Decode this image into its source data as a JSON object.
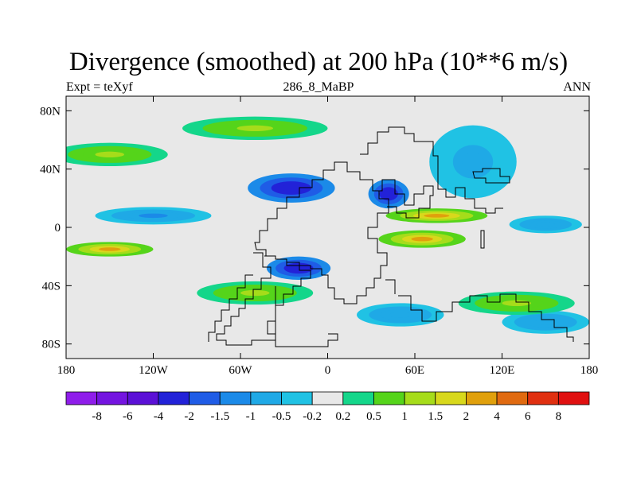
{
  "title": "Divergence (smoothed) at 200 hPa (10**6 m/s)",
  "subtitle_left": "Expt = teXyf",
  "subtitle_center": "286_8_MaBP",
  "subtitle_right": "ANN",
  "chart_data": {
    "type": "heatmap",
    "xlim": [
      -180,
      180
    ],
    "ylim": [
      -90,
      90
    ],
    "x_ticks": [
      {
        "value": -180,
        "label": "180"
      },
      {
        "value": -120,
        "label": "120W"
      },
      {
        "value": -60,
        "label": "60W"
      },
      {
        "value": 0,
        "label": "0"
      },
      {
        "value": 60,
        "label": "60E"
      },
      {
        "value": 120,
        "label": "120E"
      },
      {
        "value": 180,
        "label": "180"
      }
    ],
    "y_ticks": [
      {
        "value": 80,
        "label": "80N"
      },
      {
        "value": 40,
        "label": "40N"
      },
      {
        "value": 0,
        "label": "0"
      },
      {
        "value": -40,
        "label": "40S"
      },
      {
        "value": -80,
        "label": "80S"
      }
    ],
    "colorbar": {
      "labels": [
        "-8",
        "-6",
        "-4",
        "-2",
        "-1.5",
        "-1",
        "-0.5",
        "-0.2",
        "0.2",
        "0.5",
        "1",
        "1.5",
        "2",
        "4",
        "6",
        "8"
      ],
      "colors": [
        "#8f1dea",
        "#7414e0",
        "#5b10d6",
        "#2222d8",
        "#1f5ce6",
        "#1b8ae8",
        "#1fa9e6",
        "#20c2e4",
        "#e8e8e8",
        "#14d68a",
        "#55d41a",
        "#a6dc1a",
        "#d8d81c",
        "#e0a00c",
        "#e06a10",
        "#e03010",
        "#e01010"
      ]
    },
    "fields": [
      {
        "value": -3.0,
        "lon": -25,
        "lat": 27,
        "lon_radius": 30,
        "lat_radius": 10
      },
      {
        "value": -2.5,
        "lon": 42,
        "lat": 23,
        "lon_radius": 14,
        "lat_radius": 10
      },
      {
        "value": -1.2,
        "lon": -120,
        "lat": 8,
        "lon_radius": 40,
        "lat_radius": 6
      },
      {
        "value": -0.8,
        "lon": 100,
        "lat": 45,
        "lon_radius": 30,
        "lat_radius": 25
      },
      {
        "value": -2.5,
        "lon": -20,
        "lat": -28,
        "lon_radius": 22,
        "lat_radius": 8
      },
      {
        "value": -1.0,
        "lon": 50,
        "lat": -60,
        "lon_radius": 30,
        "lat_radius": 8
      },
      {
        "value": -1.0,
        "lon": 150,
        "lat": -65,
        "lon_radius": 30,
        "lat_radius": 8
      },
      {
        "value": -1.0,
        "lon": 150,
        "lat": 2,
        "lon_radius": 25,
        "lat_radius": 6
      },
      {
        "value": 2.0,
        "lon": 75,
        "lat": 8,
        "lon_radius": 35,
        "lat_radius": 5
      },
      {
        "value": 2.2,
        "lon": 65,
        "lat": -8,
        "lon_radius": 30,
        "lat_radius": 6
      },
      {
        "value": 2.0,
        "lon": -150,
        "lat": -15,
        "lon_radius": 30,
        "lat_radius": 5
      },
      {
        "value": 1.2,
        "lon": -50,
        "lat": -45,
        "lon_radius": 40,
        "lat_radius": 8
      },
      {
        "value": 1.0,
        "lon": -150,
        "lat": 50,
        "lon_radius": 40,
        "lat_radius": 8
      },
      {
        "value": 1.0,
        "lon": 130,
        "lat": -52,
        "lon_radius": 40,
        "lat_radius": 8
      },
      {
        "value": 1.0,
        "lon": -50,
        "lat": 68,
        "lon_radius": 50,
        "lat_radius": 8
      }
    ],
    "coastline": "black stepped outline (Africa, Eurasia, Arabia, South America)"
  }
}
